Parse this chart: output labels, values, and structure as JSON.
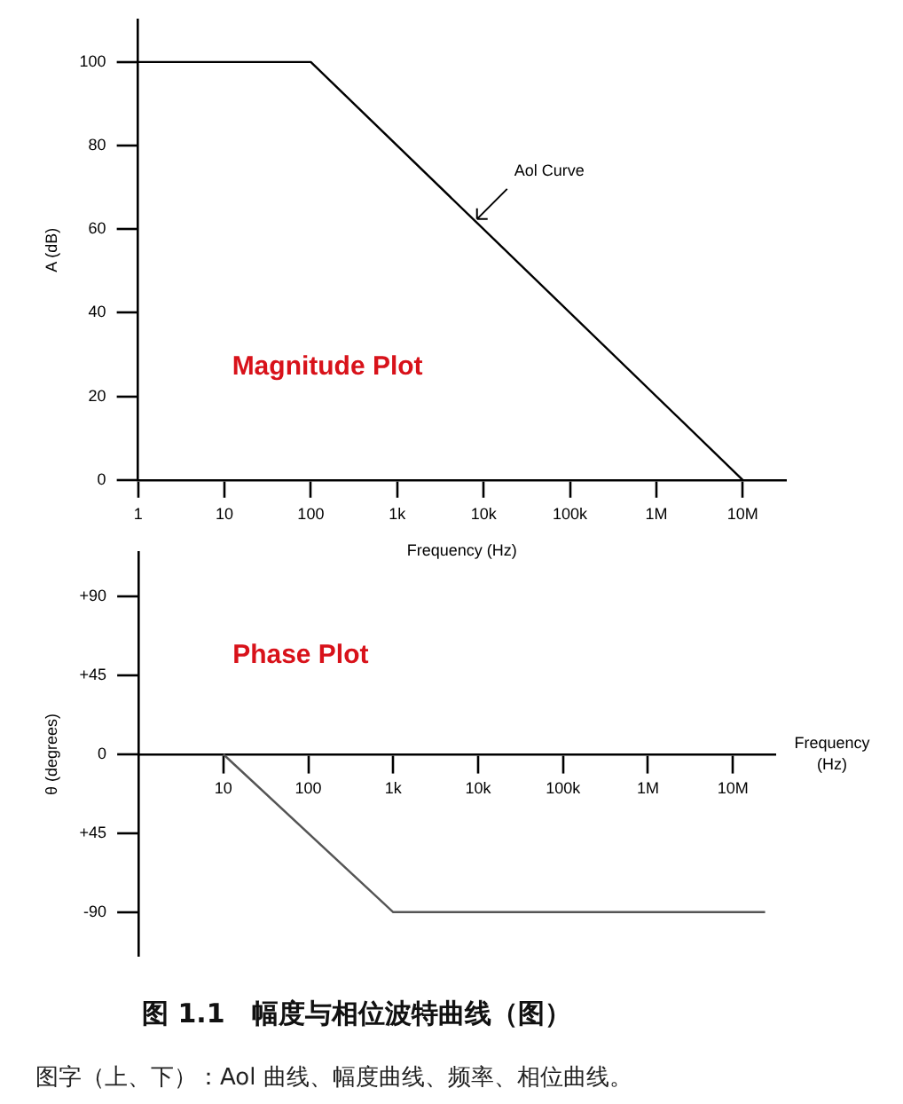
{
  "chart_data": [
    {
      "type": "line",
      "xlabel": "Frequency (Hz)",
      "ylabel": "A (dB)",
      "log": "x",
      "grid": false,
      "legend": false,
      "marker": "none",
      "line_style": "solid",
      "x": [
        1,
        100,
        10000000
      ],
      "values": [
        100,
        100,
        0
      ],
      "color": "#000000",
      "xlim": [
        1,
        31600000
      ],
      "ylim": [
        0,
        110
      ],
      "xticks": [
        1,
        10,
        100,
        {
          "value": 1000,
          "label": "1k"
        },
        {
          "value": 10000,
          "label": "10k"
        },
        {
          "value": 100000,
          "label": "100k"
        },
        {
          "value": 1000000,
          "label": "1M"
        },
        {
          "value": 10000000,
          "label": "10M"
        }
      ],
      "yticks": [
        0,
        20,
        40,
        60,
        80,
        100
      ],
      "annotations": [
        "Magnitude Plot",
        {
          "text": "Aol Curve",
          "x": 8000,
          "y": 62
        }
      ]
    },
    {
      "type": "line",
      "xlabel": "Frequency (Hz)",
      "ylabel": "θ (degrees)",
      "log": "x",
      "grid": false,
      "legend": false,
      "marker": "none",
      "line_style": "solid",
      "x": [
        10,
        1000,
        24000000
      ],
      "values": [
        0,
        -90,
        -90
      ],
      "color": "#555555",
      "xlim": [
        1,
        31600000
      ],
      "ylim": [
        -115,
        115
      ],
      "xticks": [
        10,
        100,
        {
          "value": 1000,
          "label": "1k"
        },
        {
          "value": 10000,
          "label": "10k"
        },
        {
          "value": 100000,
          "label": "100k"
        },
        {
          "value": 1000000,
          "label": "1M"
        },
        {
          "value": 10000000,
          "label": "10M"
        }
      ],
      "yticks": [
        {
          "value": 90,
          "label": "+90"
        },
        {
          "value": 45,
          "label": "+45"
        },
        0,
        {
          "value": -45,
          "label": "+45"
        },
        {
          "value": -90,
          "label": "-90"
        }
      ],
      "annotations": [
        "Phase Plot",
        "图 1.1　幅度与相位波特曲线（图）",
        "图字（上、下）：Aol 曲线、幅度曲线、频率、相位曲线。"
      ]
    }
  ]
}
